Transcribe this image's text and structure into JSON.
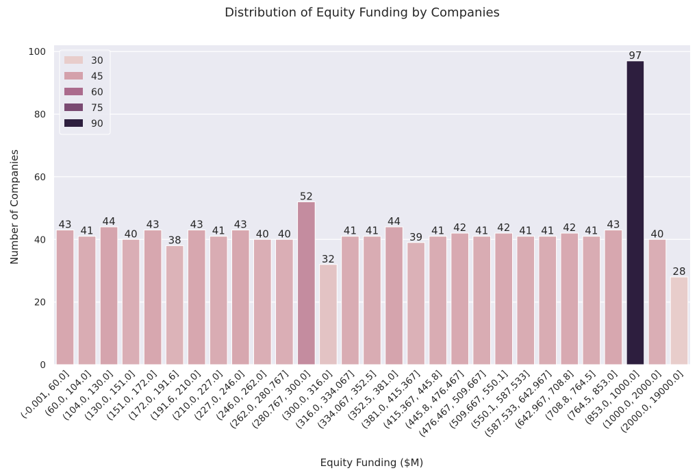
{
  "chart_data": {
    "type": "bar",
    "title": "Distribution of Equity Funding by Companies",
    "xlabel": "Equity Funding ($M)",
    "ylabel": "Number of Companies",
    "ylim": [
      0,
      102
    ],
    "yticks": [
      0,
      20,
      40,
      60,
      80,
      100
    ],
    "grid": true,
    "legend_position": "top-left",
    "categories": [
      "(-0.001, 60.0]",
      "(60.0, 104.0]",
      "(104.0, 130.0]",
      "(130.0, 151.0]",
      "(151.0, 172.0]",
      "(172.0, 191.6]",
      "(191.6, 210.0]",
      "(210.0, 227.0]",
      "(227.0, 246.0]",
      "(246.0, 262.0]",
      "(262.0, 280.767]",
      "(280.767, 300.0]",
      "(300.0, 316.0]",
      "(316.0, 334.067]",
      "(334.067, 352.5]",
      "(352.5, 381.0]",
      "(381.0, 415.367]",
      "(415.367, 445.8]",
      "(445.8, 476.467]",
      "(476.467, 509.667]",
      "(509.667, 550.1]",
      "(550.1, 587.533]",
      "(587.533, 642.967]",
      "(642.967, 708.8]",
      "(708.8, 764.5]",
      "(764.5, 853.0]",
      "(853.0, 1000.0]",
      "(1000.0, 2000.0]",
      "(2000.0, 19000.0]"
    ],
    "values": [
      43,
      41,
      44,
      40,
      43,
      38,
      43,
      41,
      43,
      40,
      40,
      52,
      32,
      41,
      41,
      44,
      39,
      41,
      42,
      41,
      42,
      41,
      41,
      42,
      41,
      43,
      97,
      40,
      28
    ],
    "legend": {
      "entries": [
        "30",
        "45",
        "60",
        "75",
        "90"
      ],
      "colors": [
        "#e8cdcb",
        "#d4a1ab",
        "#ab6b8d",
        "#7a4a72",
        "#2d1e3e"
      ]
    },
    "hue_range": [
      28,
      97
    ],
    "background_color": "#eaeaf2"
  }
}
